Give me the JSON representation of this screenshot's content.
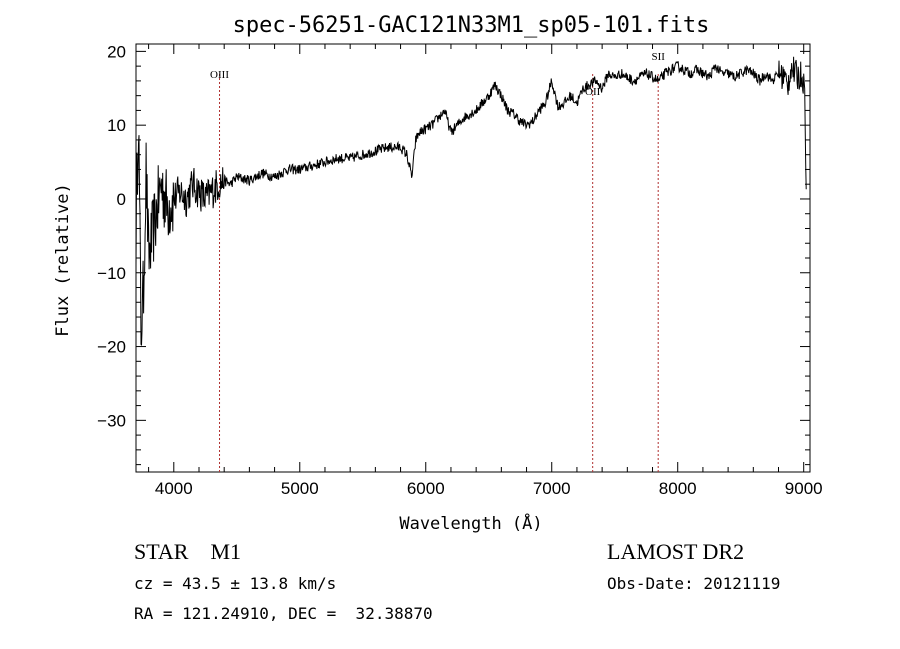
{
  "chart_data": {
    "type": "line",
    "title": "spec-56251-GAC121N33M1_sp05-101.fits",
    "xlabel": "Wavelength (Å)",
    "ylabel": "Flux (relative)",
    "xlim": [
      3700,
      9050
    ],
    "ylim": [
      -37,
      21
    ],
    "xticks": [
      "4000",
      "5000",
      "6000",
      "7000",
      "8000",
      "9000"
    ],
    "yticks": [
      "20",
      "10",
      "0",
      "−10",
      "−20",
      "−30"
    ],
    "series": [
      {
        "values_note_free": true,
        "x": [
          3700,
          3720,
          3740,
          3760,
          3780,
          3800,
          3850,
          3900,
          3950,
          4000,
          4050,
          4100,
          4150,
          4200,
          4250,
          4300,
          4350,
          4400,
          4450,
          4500,
          4600,
          4700,
          4800,
          4900,
          5000,
          5100,
          5200,
          5300,
          5400,
          5500,
          5600,
          5700,
          5800,
          5850,
          5890,
          5920,
          5950,
          6000,
          6050,
          6100,
          6150,
          6200,
          6250,
          6300,
          6350,
          6400,
          6450,
          6500,
          6550,
          6600,
          6650,
          6700,
          6750,
          6800,
          6850,
          6900,
          6950,
          7000,
          7050,
          7100,
          7150,
          7200,
          7250,
          7300,
          7350,
          7400,
          7450,
          7500,
          7550,
          7600,
          7650,
          7700,
          7750,
          7800,
          7850,
          7900,
          7950,
          8000,
          8050,
          8100,
          8150,
          8200,
          8250,
          8300,
          8350,
          8400,
          8450,
          8500,
          8550,
          8600,
          8650,
          8700,
          8750,
          8800,
          8850,
          8870,
          8900,
          8930,
          8960,
          8990,
          9010,
          9020
        ],
        "y": [
          -5,
          12,
          -18,
          -12,
          4,
          -8,
          -3,
          2,
          -1,
          0,
          1,
          0,
          2,
          1,
          0,
          1,
          2,
          2.5,
          2,
          3,
          2.5,
          3.5,
          3,
          4,
          4,
          4.5,
          5,
          5.5,
          5.5,
          6,
          6.5,
          7,
          7,
          6,
          3,
          8,
          9,
          9.5,
          10,
          11,
          12,
          9,
          10,
          11,
          11.5,
          12,
          13,
          14,
          15.5,
          14,
          12,
          11.5,
          10.5,
          10,
          10.5,
          12,
          13,
          16,
          12.5,
          13,
          14,
          13,
          15,
          15.5,
          16,
          15,
          17,
          16.5,
          17,
          16.5,
          16,
          16.5,
          17,
          16.5,
          16,
          17,
          17.5,
          18,
          17.5,
          17,
          17.5,
          17,
          16.5,
          18,
          17,
          17,
          16.5,
          17,
          17.5,
          17,
          16,
          17,
          16,
          17,
          16.5,
          15,
          18,
          17,
          16.5,
          17,
          14,
          1
        ]
      }
    ],
    "annotations": [
      {
        "label": "OIII",
        "x": 4363
      },
      {
        "label": "OII",
        "x": 7325
      },
      {
        "label": "SII",
        "x": 7845
      }
    ],
    "grid": false,
    "legend": "none"
  },
  "info": {
    "class": "STAR",
    "subclass": "M1",
    "survey": "LAMOST DR2",
    "cz": "cz = 43.5 ± 13.8 km/s",
    "obsdate": "Obs-Date: 20121119",
    "radec": "RA = 121.24910, DEC =  32.38870"
  }
}
